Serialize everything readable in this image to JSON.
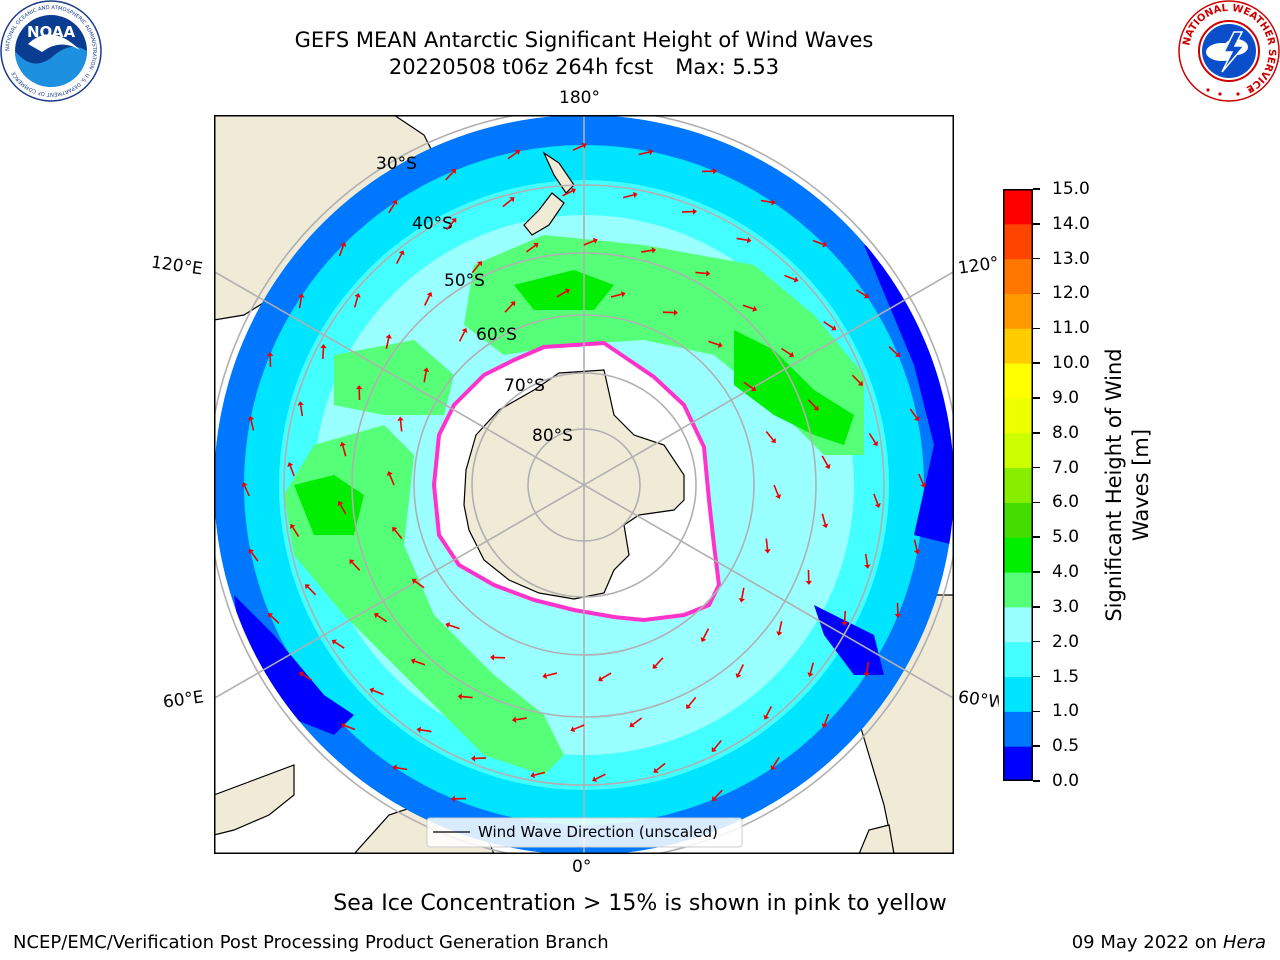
{
  "header": {
    "title_line1": "GEFS MEAN Antarctic Significant Height of Wind Waves",
    "title_run": "20220508 t06z 264h fcst",
    "title_max": "Max: 5.53"
  },
  "map": {
    "projection": "south-polar-stereographic",
    "longitude_labels": {
      "top": "180°",
      "bottom": "0°",
      "upper_left": "120°E",
      "upper_right": "120°W",
      "lower_left": "60°E",
      "lower_right": "60°W"
    },
    "latitude_labels": [
      "30°S",
      "40°S",
      "50°S",
      "60°S",
      "70°S",
      "80°S"
    ],
    "legend_label": "Wind Wave Direction (unscaled)",
    "colors": {
      "land": "#efebd7",
      "ice_edge": "#ff33cc",
      "arrow": "#ee0000",
      "grid": "#b0b0b0"
    }
  },
  "colorbar": {
    "label": "Significant Height of Wind Waves [m]",
    "ticks": [
      "0.0",
      "0.5",
      "1.0",
      "1.5",
      "2.0",
      "3.0",
      "4.0",
      "5.0",
      "6.0",
      "7.0",
      "8.0",
      "9.0",
      "10.0",
      "11.0",
      "12.0",
      "13.0",
      "14.0",
      "15.0"
    ],
    "colors": [
      "#0000ff",
      "#0077ff",
      "#00e5ff",
      "#44ffff",
      "#99ffff",
      "#55ff77",
      "#00ee00",
      "#44dd00",
      "#88ee00",
      "#ccff00",
      "#eeff00",
      "#ffff00",
      "#ffcc00",
      "#ff9900",
      "#ff7700",
      "#ff4400",
      "#ff0000"
    ]
  },
  "logos": {
    "noaa_text": "NOAA",
    "noaa_ring": "NATIONAL OCEANIC AND ATMOSPHERIC ADMINISTRATION · U.S. DEPARTMENT OF COMMERCE",
    "nws_ring": "NATIONAL WEATHER SERVICE"
  },
  "footer": {
    "note": "Sea Ice Concentration > 15% is shown in pink to yellow",
    "credit": "NCEP/EMC/Verification Post Processing Product Generation Branch",
    "date": "09 May 2022 on",
    "machine": "Hera"
  }
}
